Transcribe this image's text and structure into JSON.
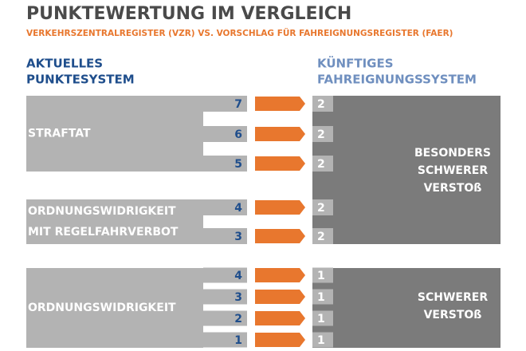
{
  "header": {
    "title": "PUNKTEWERTUNG IM VERGLEICH",
    "subtitle": "VERKEHRSZENTRALREGISTER (VZR) VS. VORSCHLAG FÜR FAHREIGNUNGSREGISTER (FAER)"
  },
  "left_heading": [
    "AKTUELLES",
    "PUNKTESYSTEM"
  ],
  "right_heading": [
    "KÜNFTIGES",
    "FAHREIGNUNGSSYSTEM"
  ],
  "left_groups": [
    {
      "label": [
        "STRAFTAT"
      ],
      "rows": [
        {
          "current": 7,
          "future": 2
        },
        {
          "current": 6,
          "future": 2
        },
        {
          "current": 5,
          "future": 2
        }
      ]
    },
    {
      "label": [
        "ORDNUNGSWIDRIGKEIT",
        "MIT REGELFAHRVERBOT"
      ],
      "rows": [
        {
          "current": 4,
          "future": 2
        },
        {
          "current": 3,
          "future": 2
        }
      ]
    },
    {
      "label": [
        "ORDNUNGSWIDRIGKEIT"
      ],
      "rows": [
        {
          "current": 4,
          "future": 1
        },
        {
          "current": 3,
          "future": 1
        },
        {
          "current": 2,
          "future": 1
        },
        {
          "current": 1,
          "future": 1
        }
      ]
    }
  ],
  "right_groups": [
    {
      "label": [
        "BESONDERS",
        "SCHWERER",
        "VERSTOß"
      ]
    },
    {
      "label": [
        "SCHWERER",
        "VERSTOß"
      ]
    }
  ]
}
